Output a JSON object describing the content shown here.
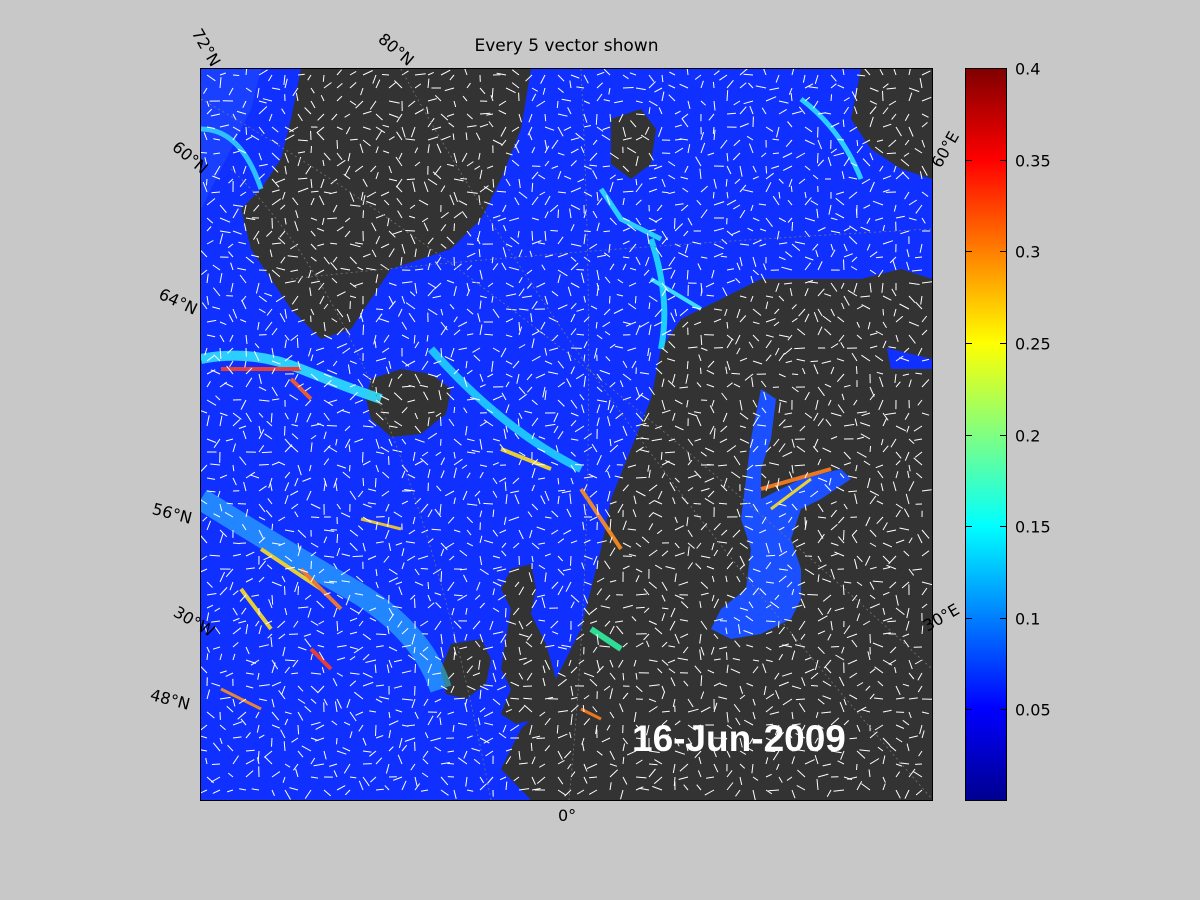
{
  "title": "Every 5 vector shown",
  "date": "16-Jun-2009",
  "lat_labels": [
    "72°N",
    "60°N",
    "64°N",
    "56°N",
    "30°W",
    "48°N"
  ],
  "lon_labels": [
    "80°N",
    "60°E",
    "30°E",
    "0°"
  ],
  "colorbar": {
    "ticks": [
      "0.4",
      "0.35",
      "0.3",
      "0.25",
      "0.2",
      "0.15",
      "0.1",
      "0.05"
    ],
    "range": [
      0,
      0.4
    ],
    "colormap": "jet"
  },
  "colors": {
    "land": "#333333",
    "background": "#c8c8c8",
    "vector": "#ffffff"
  }
}
